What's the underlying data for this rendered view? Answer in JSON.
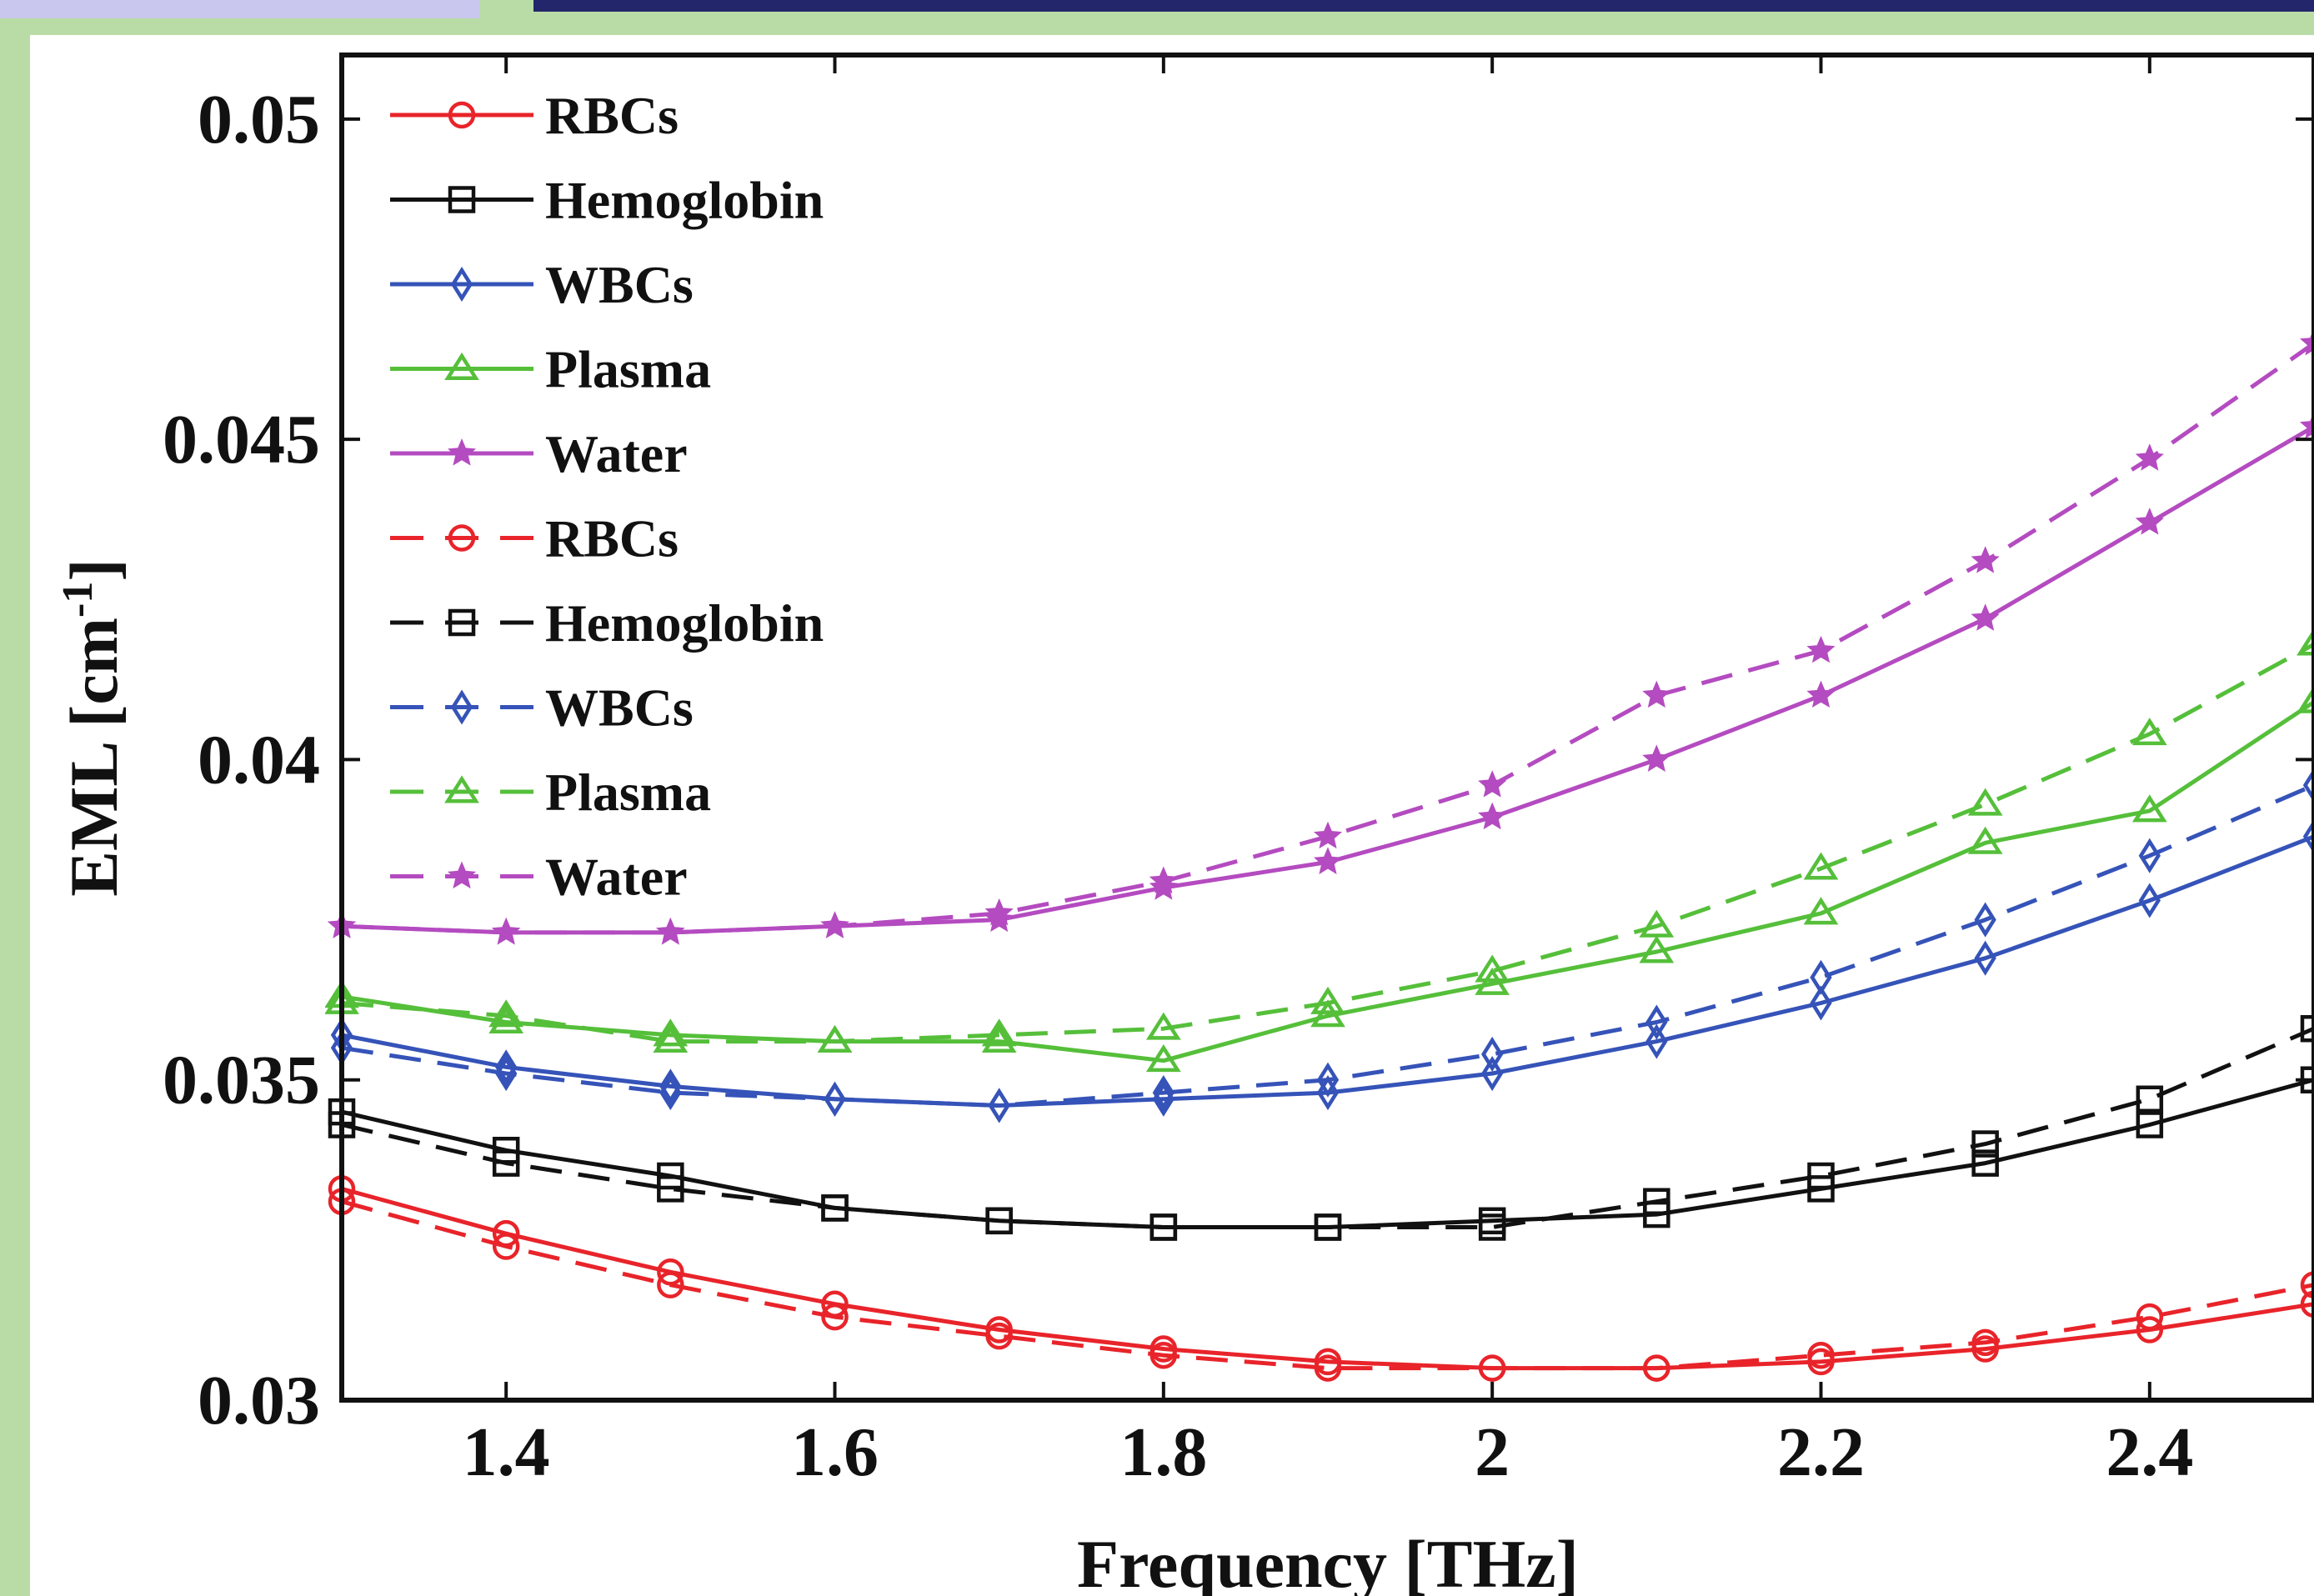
{
  "chart_data": {
    "type": "line",
    "xlabel": "Frequency [THz]",
    "ylabel": "EML [cm",
    "ylabel_sup": "-1",
    "ylabel_close": "]",
    "xlim": [
      1.3,
      2.5
    ],
    "ylim": [
      0.03,
      0.051
    ],
    "x_ticks": [
      1.4,
      1.6,
      1.8,
      2.0,
      2.2,
      2.4
    ],
    "x_tick_labels": [
      "1.4",
      "1.6",
      "1.8",
      "2",
      "2.2",
      "2.4"
    ],
    "y_ticks": [
      0.03,
      0.035,
      0.04,
      0.045,
      0.05
    ],
    "y_tick_labels": [
      "0.03",
      "0.035",
      "0.04",
      "0.045",
      "0.05"
    ],
    "grid": false,
    "legend_position": "top-left",
    "x": [
      1.3,
      1.4,
      1.5,
      1.6,
      1.7,
      1.8,
      1.9,
      2.0,
      2.1,
      2.2,
      2.3,
      2.4,
      2.5
    ],
    "series": [
      {
        "name": "RBCs",
        "color": "#e8242a",
        "line": "solid",
        "marker": "circle",
        "values": [
          0.0333,
          0.0326,
          0.032,
          0.0315,
          0.0311,
          0.0308,
          0.0306,
          0.0305,
          0.0305,
          0.0306,
          0.0308,
          0.0311,
          0.0315
        ]
      },
      {
        "name": "Hemoglobin",
        "color": "#111111",
        "line": "solid",
        "marker": "square",
        "values": [
          0.0345,
          0.0339,
          0.0335,
          0.033,
          0.0328,
          0.0327,
          0.0327,
          0.0328,
          0.0329,
          0.0333,
          0.0337,
          0.0343,
          0.035
        ]
      },
      {
        "name": "WBCs",
        "color": "#3553b8",
        "line": "solid",
        "marker": "diamond",
        "values": [
          0.0357,
          0.0352,
          0.0349,
          0.0347,
          0.0346,
          0.0347,
          0.0348,
          0.0351,
          0.0356,
          0.0362,
          0.0369,
          0.0378,
          0.0388
        ]
      },
      {
        "name": "Plasma",
        "color": "#55bf3a",
        "line": "solid",
        "marker": "triangle",
        "values": [
          0.0363,
          0.0359,
          0.0357,
          0.0356,
          0.0356,
          0.0353,
          0.036,
          0.0365,
          0.037,
          0.0376,
          0.0387,
          0.0392,
          0.0409
        ]
      },
      {
        "name": "Water",
        "color": "#b44bc0",
        "line": "solid",
        "marker": "star",
        "values": [
          0.0374,
          0.0373,
          0.0373,
          0.0374,
          0.0375,
          0.038,
          0.0384,
          0.0391,
          0.04,
          0.041,
          0.0422,
          0.0437,
          0.0452
        ]
      },
      {
        "name": "RBCs",
        "color": "#e8242a",
        "line": "dashed",
        "marker": "circle",
        "values": [
          0.0331,
          0.0324,
          0.0318,
          0.0313,
          0.031,
          0.0307,
          0.0305,
          0.0305,
          0.0305,
          0.0307,
          0.0309,
          0.0313,
          0.0318
        ]
      },
      {
        "name": "Hemoglobin",
        "color": "#111111",
        "line": "dashed",
        "marker": "square",
        "values": [
          0.0343,
          0.0337,
          0.0333,
          0.033,
          0.0328,
          0.0327,
          0.0327,
          0.0327,
          0.0331,
          0.0335,
          0.034,
          0.0347,
          0.0358
        ]
      },
      {
        "name": "WBCs",
        "color": "#3553b8",
        "line": "dashed",
        "marker": "diamond",
        "values": [
          0.0355,
          0.0351,
          0.0348,
          0.0347,
          0.0346,
          0.0348,
          0.035,
          0.0354,
          0.0359,
          0.0366,
          0.0375,
          0.0385,
          0.0396
        ]
      },
      {
        "name": "Plasma",
        "color": "#55bf3a",
        "line": "dashed",
        "marker": "triangle",
        "values": [
          0.0362,
          0.036,
          0.0356,
          0.0356,
          0.0357,
          0.0358,
          0.0362,
          0.0367,
          0.0374,
          0.0383,
          0.0393,
          0.0404,
          0.0418
        ]
      },
      {
        "name": "Water",
        "color": "#b44bc0",
        "line": "dashed",
        "marker": "star",
        "values": [
          0.0374,
          0.0373,
          0.0373,
          0.0374,
          0.0376,
          0.0381,
          0.0388,
          0.0396,
          0.041,
          0.0417,
          0.0431,
          0.0447,
          0.0465
        ]
      }
    ]
  }
}
